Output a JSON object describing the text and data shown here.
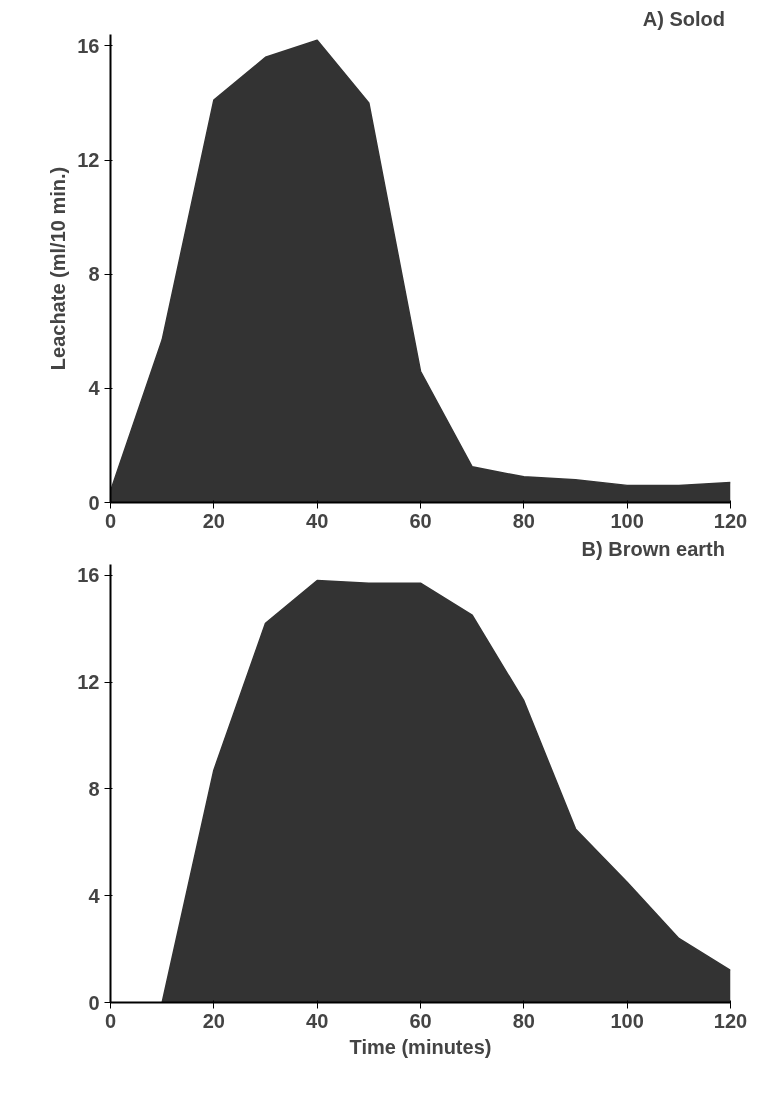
{
  "chart_data": [
    {
      "type": "area",
      "title": "A)  Solod",
      "ylabel": "Leachate (ml/10 min.)",
      "x": [
        0,
        10,
        20,
        30,
        40,
        50,
        60,
        70,
        80,
        90,
        100,
        110,
        120
      ],
      "series": [
        {
          "color": "#333333",
          "values": [
            0.4,
            5.7,
            14.1,
            15.6,
            16.2,
            14.0,
            4.6,
            1.25,
            0.9,
            0.8,
            0.6,
            0.6,
            0.7
          ]
        }
      ],
      "xlim": [
        0,
        120
      ],
      "xticks": [
        0,
        20,
        40,
        60,
        80,
        100,
        120
      ],
      "ylim": [
        0,
        16.4
      ],
      "yticks": [
        0,
        4,
        8,
        12,
        16
      ],
      "grid": false
    },
    {
      "type": "area",
      "title": "B)  Brown earth",
      "xlabel": "Time (minutes)",
      "x": [
        10,
        20,
        30,
        40,
        50,
        60,
        70,
        80,
        90,
        100,
        110,
        120
      ],
      "series": [
        {
          "color": "#333333",
          "values": [
            0,
            8.7,
            14.2,
            15.8,
            15.7,
            15.7,
            14.5,
            11.3,
            6.5,
            4.5,
            2.4,
            1.2
          ]
        }
      ],
      "xlim": [
        0,
        120
      ],
      "xticks": [
        0,
        20,
        40,
        60,
        80,
        100,
        120
      ],
      "ylim": [
        0,
        16.4
      ],
      "yticks": [
        0,
        4,
        8,
        12,
        16
      ],
      "grid": false
    }
  ]
}
